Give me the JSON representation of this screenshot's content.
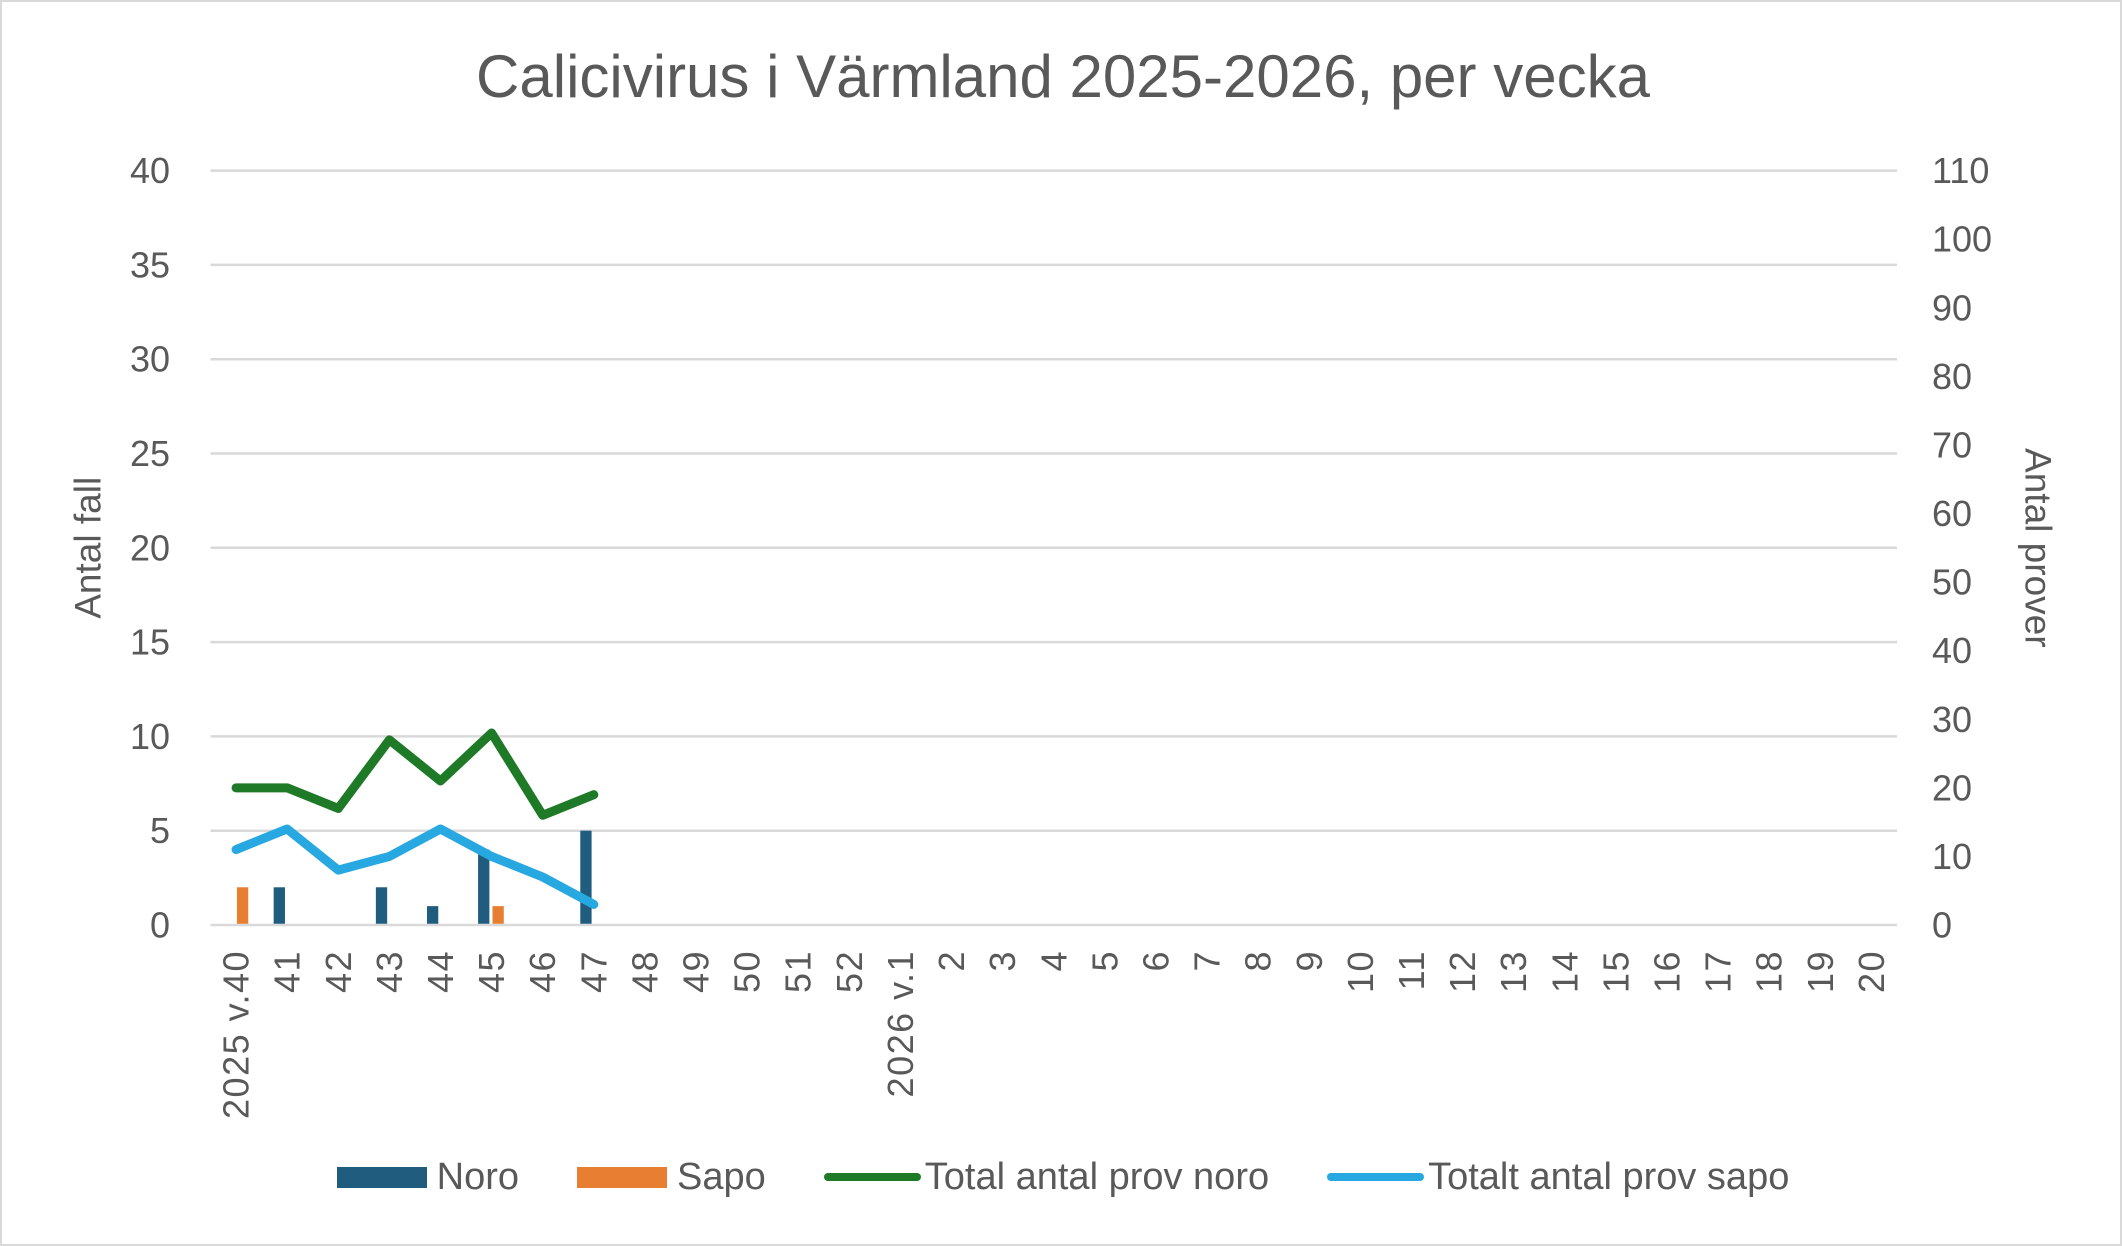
{
  "title": "Calicivirus i Värmland 2025-2026, per vecka",
  "chart_data": {
    "type": "bar+line",
    "title": "Calicivirus i Värmland 2025-2026, per vecka",
    "categories": [
      "2025 v.40",
      "41",
      "42",
      "43",
      "44",
      "45",
      "46",
      "47",
      "48",
      "49",
      "50",
      "51",
      "52",
      "2026 v.1",
      "2",
      "3",
      "4",
      "5",
      "6",
      "7",
      "8",
      "9",
      "10",
      "11",
      "12",
      "13",
      "14",
      "15",
      "16",
      "17",
      "18",
      "19",
      "20"
    ],
    "series": [
      {
        "name": "Noro",
        "type": "bar",
        "axis": "left",
        "color": "#1f5c7d",
        "values": [
          0,
          2,
          0,
          2,
          1,
          4,
          0,
          5,
          0,
          0,
          0,
          0,
          0,
          0,
          0,
          0,
          0,
          0,
          0,
          0,
          0,
          0,
          0,
          0,
          0,
          0,
          0,
          0,
          0,
          0,
          0,
          0,
          0
        ]
      },
      {
        "name": "Sapo",
        "type": "bar",
        "axis": "left",
        "color": "#e87e31",
        "values": [
          2,
          0,
          0,
          0,
          0,
          1,
          0,
          0,
          0,
          0,
          0,
          0,
          0,
          0,
          0,
          0,
          0,
          0,
          0,
          0,
          0,
          0,
          0,
          0,
          0,
          0,
          0,
          0,
          0,
          0,
          0,
          0,
          0
        ]
      },
      {
        "name": "Total antal prov noro",
        "type": "line",
        "axis": "right",
        "color": "#1f7a28",
        "values": [
          20,
          20,
          17,
          27,
          21,
          28,
          16,
          19,
          null,
          null,
          null,
          null,
          null,
          null,
          null,
          null,
          null,
          null,
          null,
          null,
          null,
          null,
          null,
          null,
          null,
          null,
          null,
          null,
          null,
          null,
          null,
          null,
          null
        ]
      },
      {
        "name": "Totalt antal prov sapo",
        "type": "line",
        "axis": "right",
        "color": "#28a8e0",
        "values": [
          11,
          14,
          8,
          10,
          14,
          10,
          7,
          3,
          null,
          null,
          null,
          null,
          null,
          null,
          null,
          null,
          null,
          null,
          null,
          null,
          null,
          null,
          null,
          null,
          null,
          null,
          null,
          null,
          null,
          null,
          null,
          null,
          null
        ]
      }
    ],
    "left_axis": {
      "title": "Antal fall",
      "min": 0,
      "max": 40,
      "step": 5
    },
    "right_axis": {
      "title": "Antal prover",
      "min": 0,
      "max": 110,
      "step": 10
    },
    "gridlines": true,
    "legend_position": "bottom"
  },
  "colors": {
    "grid": "#d9d9d9",
    "text": "#595959",
    "background": "#ffffff",
    "border": "#d9d9d9"
  }
}
